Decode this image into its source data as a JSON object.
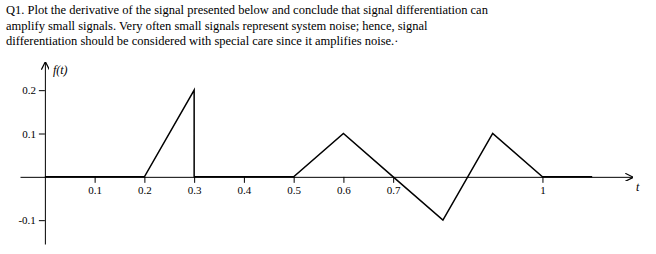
{
  "chart_data": {
    "type": "line",
    "title": "Q1. Plot the derivative of the signal presented below and conclude that signal differentiation can\namplify small signals. Very often small signals represent system noise; hence, signal\ndifferentiation should be considered with special care since it amplifies noise.·",
    "xlabel": "t",
    "ylabel": "f(t)",
    "x": [
      0.0,
      0.2,
      0.3,
      0.3,
      0.5,
      0.6,
      0.7,
      0.8,
      0.9,
      1.0,
      1.1
    ],
    "values": [
      0.0,
      0.0,
      0.2,
      0.0,
      0.0,
      0.1,
      0.0,
      -0.1,
      0.1,
      0.0,
      0.0
    ],
    "color": "#000000",
    "xlim": [
      -0.05,
      1.18
    ],
    "ylim": [
      -0.155,
      0.265
    ],
    "xticks": [
      0.1,
      0.2,
      0.3,
      0.4,
      0.5,
      0.6,
      0.7,
      1
    ],
    "yticks": [
      -0.1,
      0.1,
      0.2
    ],
    "grid": false
  }
}
